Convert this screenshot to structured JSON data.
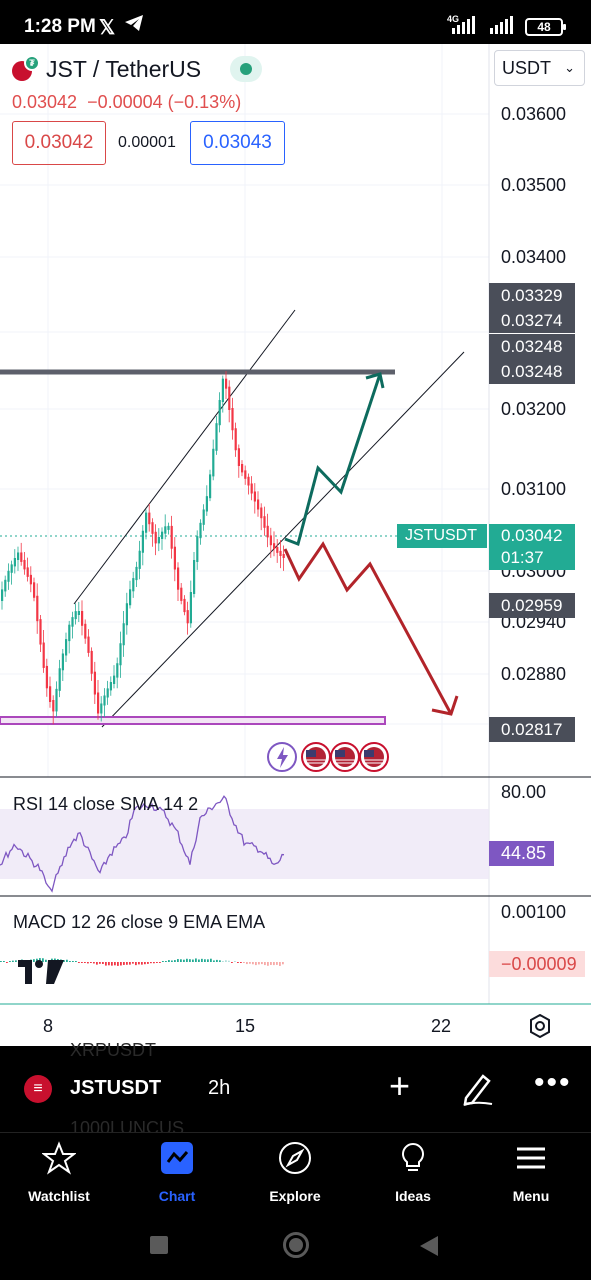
{
  "status_bar": {
    "time": "1:28 PM",
    "battery": "48",
    "network": "4G"
  },
  "header": {
    "symbol": "JST / TetherUS",
    "last_price": "0.03042",
    "change": "−0.00004",
    "change_pct": "(−0.13%)",
    "sell_price": "0.03042",
    "spread": "0.00001",
    "buy_price": "0.03043",
    "currency": "USDT"
  },
  "price_axis": {
    "labels": [
      "0.03600",
      "0.03500",
      "0.03400",
      "0.03200",
      "0.03100",
      "0.03000",
      "0.02940",
      "0.02880"
    ],
    "tags": [
      "0.03329",
      "0.03274",
      "0.03248",
      "0.03248",
      "0.02959",
      "0.02817"
    ],
    "current_symbol": "JSTUSDT",
    "current_price": "0.03042",
    "countdown": "01:37"
  },
  "rsi": {
    "title": "RSI 14 close SMA 14 2",
    "axis_label": "80.00",
    "value": "44.85"
  },
  "macd": {
    "title": "MACD 12 26 close 9 EMA EMA",
    "axis_label": "0.00100",
    "value": "−0.00009"
  },
  "time_axis": {
    "labels": [
      "8",
      "15",
      "22"
    ]
  },
  "symbol_bar": {
    "symbol": "JSTUSDT",
    "interval": "2h",
    "ghost_top": "XRPUSDT",
    "ghost_bottom": "1000LUNCUS"
  },
  "bottom_nav": {
    "items": [
      {
        "label": "Watchlist",
        "icon": "star-icon"
      },
      {
        "label": "Chart",
        "icon": "chart-icon"
      },
      {
        "label": "Explore",
        "icon": "compass-icon"
      },
      {
        "label": "Ideas",
        "icon": "lightbulb-icon"
      },
      {
        "label": "Menu",
        "icon": "hamburger-icon"
      }
    ],
    "active": "Chart"
  },
  "colors": {
    "up": "#22ab94",
    "down": "#f23645",
    "accent": "#2962ff",
    "rsi": "#7e57c2"
  }
}
